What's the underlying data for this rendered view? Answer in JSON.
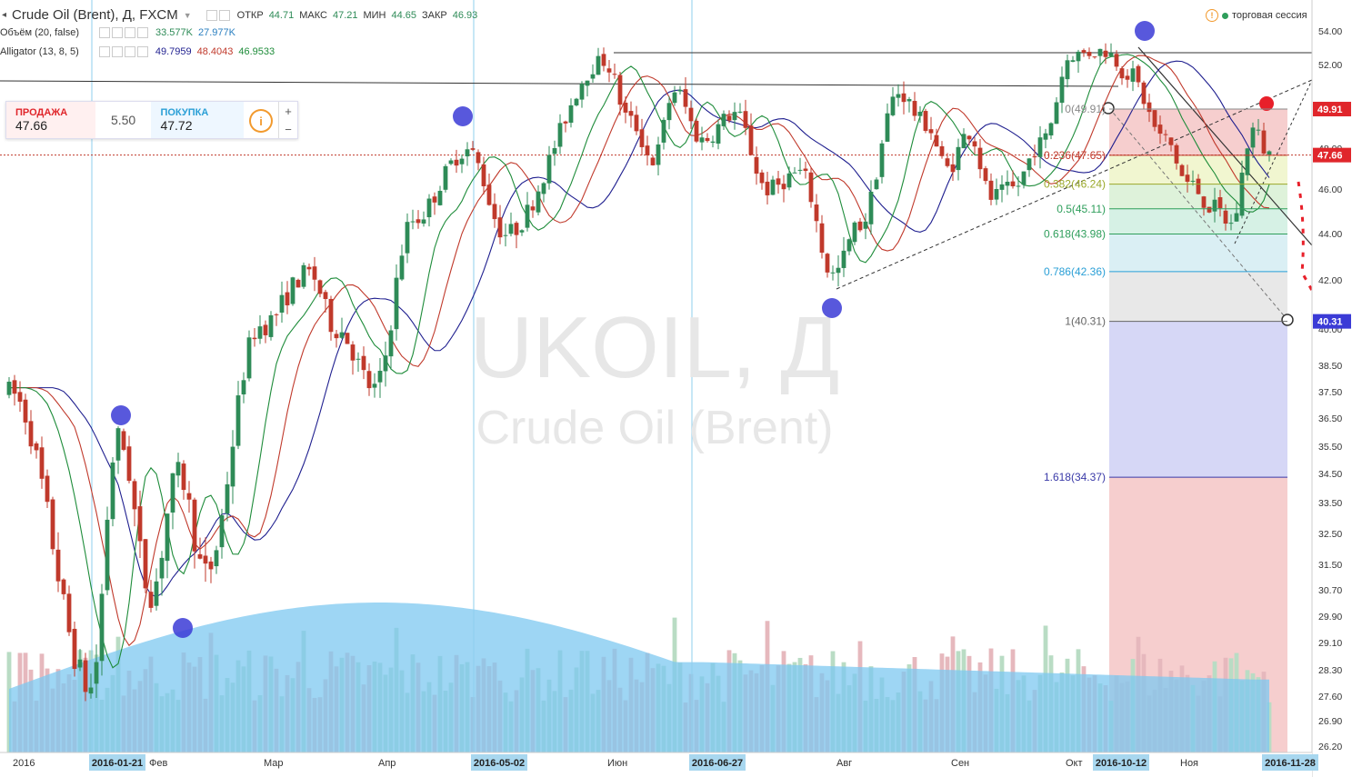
{
  "header": {
    "symbol_title": "Crude Oil (Brent), Д, FXCM",
    "ohlc": [
      {
        "label": "ОТКР",
        "value": "44.71"
      },
      {
        "label": "МАКС",
        "value": "47.21"
      },
      {
        "label": "МИН",
        "value": "44.65"
      },
      {
        "label": "ЗАКР",
        "value": "46.93"
      }
    ],
    "session_text": "торговая сессия"
  },
  "indicators": {
    "volume": {
      "label": "Объём (20, false)",
      "v1": "33.577K",
      "v2": "27.977K"
    },
    "alligator": {
      "label": "Alligator (13, 8, 5)",
      "jaw": "49.7959",
      "teeth": "48.4043",
      "lips": "46.9533"
    }
  },
  "trade": {
    "sell_label": "ПРОДАЖА",
    "sell_price": "47.66",
    "spread": "5.50",
    "buy_label": "ПОКУПКА",
    "buy_price": "47.72",
    "plus": "+",
    "minus": "−",
    "info": "i"
  },
  "watermark": {
    "line1": "UKOIL, Д",
    "line2": "Crude Oil (Brent)"
  },
  "colors": {
    "up": "#2e8b57",
    "down": "#c0392b",
    "jaw": "#1f1f8f",
    "teeth": "#c0392b",
    "lips": "#1e8c3a",
    "volume_ma": "#7ec8f0"
  },
  "chart_data": {
    "type": "candlestick",
    "ylim": [
      25.9,
      55.7
    ],
    "y_ticks": [
      "54.00",
      "52.00",
      "50.00",
      "48.00",
      "46.00",
      "44.00",
      "42.00",
      "40.00",
      "38.50",
      "37.50",
      "36.50",
      "35.50",
      "34.50",
      "33.50",
      "32.50",
      "31.50",
      "30.70",
      "29.90",
      "29.10",
      "28.30",
      "27.60",
      "26.90",
      "26.20"
    ],
    "x_labels": [
      "2016",
      "2016-01-21",
      "Фев",
      "Мар",
      "Апр",
      "2016-05-02",
      "Июн",
      "2016-06-27",
      "Авг",
      "Сен",
      "Окт",
      "2016-10-12",
      "Ноя",
      "2016-11-28"
    ],
    "x_label_days": [
      0,
      15,
      25,
      46,
      67,
      85,
      109,
      125,
      151,
      172,
      193,
      199,
      214,
      230
    ],
    "last_price": "47.66",
    "price_tags": [
      {
        "price": "49.91",
        "value": 49.91
      },
      {
        "price": "47.66",
        "value": 47.66
      },
      {
        "price": "40.31",
        "value": 40.31
      }
    ],
    "fibonacci": [
      {
        "label": "0(49.91)",
        "value": 49.91,
        "fill": "#f4c6c6"
      },
      {
        "label": "0.236(47.65)",
        "value": 47.65,
        "fill": "#eef4c8"
      },
      {
        "label": "0.382(46.24)",
        "value": 46.24,
        "fill": "#d8f0d4"
      },
      {
        "label": "0.5(45.11)",
        "value": 45.11,
        "fill": "#cfeee0"
      },
      {
        "label": "0.618(43.98)",
        "value": 43.98,
        "fill": "#d4ecf2"
      },
      {
        "label": "0.786(42.36)",
        "value": 42.36,
        "fill": "#e4e4e4"
      },
      {
        "label": "1(40.31)",
        "value": 40.31,
        "fill": "#cfd0f4"
      },
      {
        "label": "1.618(34.37)",
        "value": 34.37,
        "fill": "#f4c6c6"
      }
    ],
    "anchors": [
      {
        "day": 0,
        "price": 37.5
      },
      {
        "day": 15,
        "price": 27.8
      },
      {
        "day": 20,
        "price": 35.8
      },
      {
        "day": 26,
        "price": 30.6
      },
      {
        "day": 31,
        "price": 34.5
      },
      {
        "day": 36,
        "price": 31.2
      },
      {
        "day": 46,
        "price": 40.1
      },
      {
        "day": 55,
        "price": 42.3
      },
      {
        "day": 60,
        "price": 40.0
      },
      {
        "day": 67,
        "price": 37.6
      },
      {
        "day": 74,
        "price": 44.6
      },
      {
        "day": 84,
        "price": 47.9
      },
      {
        "day": 91,
        "price": 44.0
      },
      {
        "day": 109,
        "price": 52.2
      },
      {
        "day": 114,
        "price": 49.3
      },
      {
        "day": 118,
        "price": 47.4
      },
      {
        "day": 122,
        "price": 50.8
      },
      {
        "day": 127,
        "price": 48.4
      },
      {
        "day": 133,
        "price": 49.7
      },
      {
        "day": 139,
        "price": 46.0
      },
      {
        "day": 145,
        "price": 46.8
      },
      {
        "day": 151,
        "price": 42.2
      },
      {
        "day": 156,
        "price": 44.4
      },
      {
        "day": 163,
        "price": 50.7
      },
      {
        "day": 168,
        "price": 49.2
      },
      {
        "day": 172,
        "price": 47.0
      },
      {
        "day": 176,
        "price": 48.8
      },
      {
        "day": 180,
        "price": 45.6
      },
      {
        "day": 184,
        "price": 46.0
      },
      {
        "day": 189,
        "price": 48.2
      },
      {
        "day": 195,
        "price": 52.6
      },
      {
        "day": 201,
        "price": 52.8
      },
      {
        "day": 205,
        "price": 51.6
      },
      {
        "day": 212,
        "price": 48.4
      },
      {
        "day": 216,
        "price": 46.3
      },
      {
        "day": 221,
        "price": 45.1
      },
      {
        "day": 224,
        "price": 44.4
      },
      {
        "day": 228,
        "price": 48.9
      },
      {
        "day": 231,
        "price": 47.7
      }
    ]
  }
}
